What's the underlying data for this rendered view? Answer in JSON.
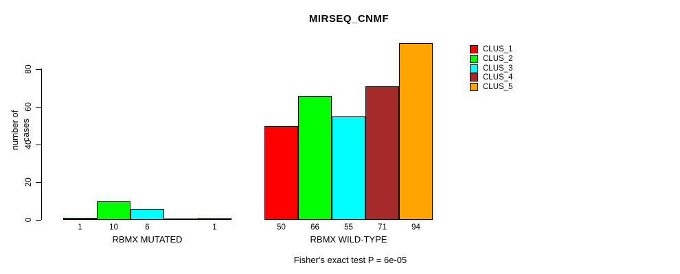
{
  "chart_data": {
    "type": "bar",
    "title": "MIRSEQ_CNMF",
    "ylabel": "number of cases",
    "xlabel": "",
    "yticks": [
      0,
      20,
      40,
      60,
      80
    ],
    "ylim": [
      0,
      94
    ],
    "grid": false,
    "legend_position": "top-right",
    "series": [
      {
        "name": "CLUS_1",
        "color": "#FF0000"
      },
      {
        "name": "CLUS_2",
        "color": "#00FF00"
      },
      {
        "name": "CLUS_3",
        "color": "#00FFFF"
      },
      {
        "name": "CLUS_4",
        "color": "#A52A2A"
      },
      {
        "name": "CLUS_5",
        "color": "#FFA500"
      }
    ],
    "groups": [
      {
        "label": "RBMX MUTATED",
        "values": [
          1,
          10,
          6,
          0,
          1
        ],
        "bar_labels": [
          "1",
          "10",
          "6",
          "",
          "1"
        ]
      },
      {
        "label": "RBMX WILD-TYPE",
        "values": [
          50,
          66,
          55,
          71,
          94
        ],
        "bar_labels": [
          "50",
          "66",
          "55",
          "71",
          "94"
        ]
      }
    ],
    "footnote": "Fisher's exact test P = 6e-05"
  }
}
